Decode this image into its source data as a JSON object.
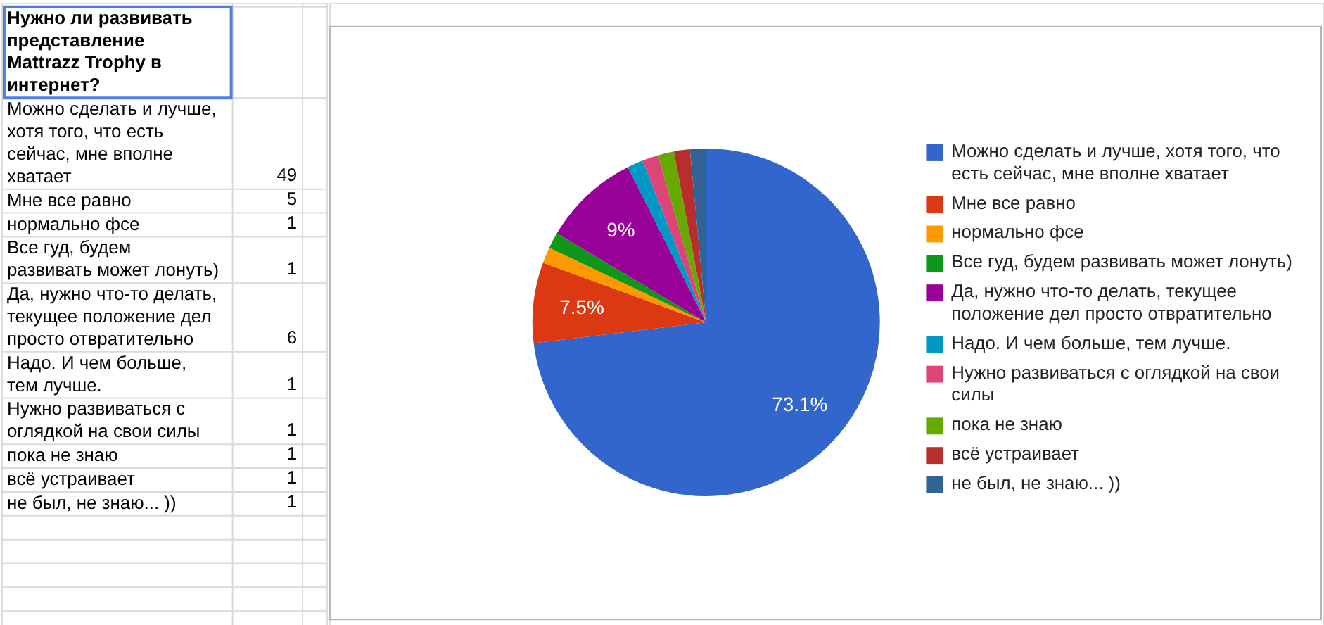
{
  "chart_data": [
    {
      "type": "other",
      "title": "Нужно ли развивать представление Mattrazz Trophy в интернет?",
      "categories": [
        "Можно сделать и лучше, хотя того, что есть сейчас, мне вполне хватает",
        "Мне все равно",
        "нормально фсе",
        "Все гуд, будем развивать может лонуть)",
        "Да, нужно что-то делать, текущее положение дел просто отвратительно",
        "Надо. И чем больше, тем лучше.",
        "Нужно развиваться с оглядкой на свои силы",
        "пока не знаю",
        "всё устраивает",
        "не был, не знаю... ))"
      ],
      "values": [
        49,
        5,
        1,
        1,
        6,
        1,
        1,
        1,
        1,
        1
      ],
      "data_labels": true
    },
    {
      "type": "pie",
      "categories": [
        "Можно сделать и лучше, хотя того, что есть сейчас, мне вполне хватает",
        "Мне все равно",
        "нормально фсе",
        "Все гуд, будем развивать может лонуть)",
        "Да, нужно что-то делать, текущее положение дел просто отвратительно",
        "Надо. И чем больше, тем лучше.",
        "Нужно развиваться с оглядкой на свои силы",
        "пока не знаю",
        "всё устраивает",
        "не был, не знаю... ))"
      ],
      "values": [
        73.1,
        7.5,
        1.49,
        1.49,
        9,
        1.49,
        1.49,
        1.49,
        1.49,
        1.49
      ],
      "colors": [
        "#3366cc",
        "#dc3912",
        "#ff9900",
        "#109618",
        "#990099",
        "#0099c6",
        "#dd4477",
        "#66aa00",
        "#b82e2e",
        "#316395"
      ],
      "value_labels": [
        "73.1%",
        "7.5%",
        null,
        null,
        "9%",
        null,
        null,
        null,
        null,
        null
      ],
      "legend": "right"
    }
  ]
}
